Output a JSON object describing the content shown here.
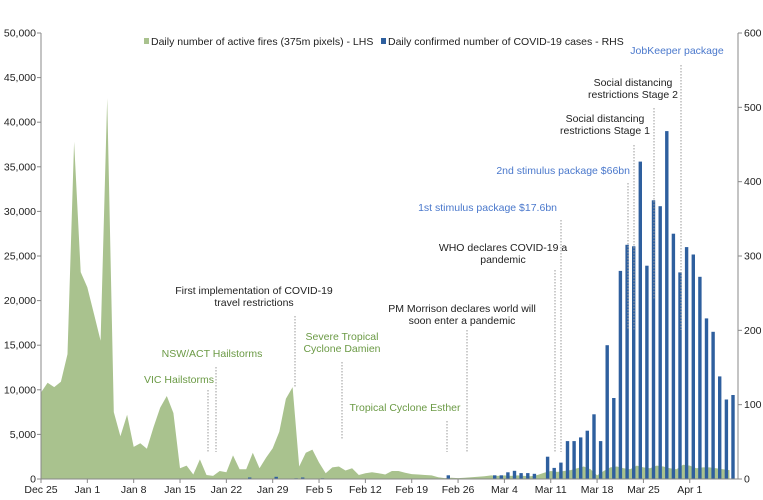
{
  "chart_data": {
    "type": "area+bar",
    "title": "",
    "x_tick_labels": [
      "Dec 25",
      "Jan 1",
      "Jan 8",
      "Jan 15",
      "Jan 22",
      "Jan 29",
      "Feb 5",
      "Feb 12",
      "Feb 19",
      "Feb 26",
      "Mar 4",
      "Mar 11",
      "Mar 18",
      "Mar 25",
      "Apr 1"
    ],
    "x_tick_dates": [
      "2019-12-25",
      "2020-01-01",
      "2020-01-08",
      "2020-01-15",
      "2020-01-22",
      "2020-01-29",
      "2020-02-05",
      "2020-02-12",
      "2020-02-19",
      "2020-02-26",
      "2020-03-04",
      "2020-03-11",
      "2020-03-18",
      "2020-03-25",
      "2020-04-01"
    ],
    "y_left": {
      "range": [
        0,
        50000
      ],
      "ticks": [
        "0",
        "5,000",
        "10,000",
        "15,000",
        "20,000",
        "25,000",
        "30,000",
        "35,000",
        "40,000",
        "45,000",
        "50,000"
      ]
    },
    "y_right": {
      "range": [
        0,
        600
      ],
      "ticks": [
        "0",
        "100",
        "200",
        "300",
        "400",
        "500",
        "600"
      ]
    },
    "grid": false,
    "legend_placement": "top",
    "dates": [
      "2019-12-25",
      "2019-12-26",
      "2019-12-27",
      "2019-12-28",
      "2019-12-29",
      "2019-12-30",
      "2019-12-31",
      "2020-01-01",
      "2020-01-02",
      "2020-01-03",
      "2020-01-04",
      "2020-01-05",
      "2020-01-06",
      "2020-01-07",
      "2020-01-08",
      "2020-01-09",
      "2020-01-10",
      "2020-01-11",
      "2020-01-12",
      "2020-01-13",
      "2020-01-14",
      "2020-01-15",
      "2020-01-16",
      "2020-01-17",
      "2020-01-18",
      "2020-01-19",
      "2020-01-20",
      "2020-01-21",
      "2020-01-22",
      "2020-01-23",
      "2020-01-24",
      "2020-01-25",
      "2020-01-26",
      "2020-01-27",
      "2020-01-28",
      "2020-01-29",
      "2020-01-30",
      "2020-01-31",
      "2020-02-01",
      "2020-02-02",
      "2020-02-03",
      "2020-02-04",
      "2020-02-05",
      "2020-02-06",
      "2020-02-07",
      "2020-02-08",
      "2020-02-09",
      "2020-02-10",
      "2020-02-11",
      "2020-02-12",
      "2020-02-13",
      "2020-02-14",
      "2020-02-15",
      "2020-02-16",
      "2020-02-17",
      "2020-02-18",
      "2020-02-19",
      "2020-02-20",
      "2020-02-21",
      "2020-02-22",
      "2020-02-23",
      "2020-02-24",
      "2020-02-25",
      "2020-02-26",
      "2020-02-27",
      "2020-02-28",
      "2020-02-29",
      "2020-03-01",
      "2020-03-02",
      "2020-03-03",
      "2020-03-04",
      "2020-03-05",
      "2020-03-06",
      "2020-03-07",
      "2020-03-08",
      "2020-03-09",
      "2020-03-10",
      "2020-03-11",
      "2020-03-12",
      "2020-03-13",
      "2020-03-14",
      "2020-03-15",
      "2020-03-16",
      "2020-03-17",
      "2020-03-18",
      "2020-03-19",
      "2020-03-20",
      "2020-03-21",
      "2020-03-22",
      "2020-03-23",
      "2020-03-24",
      "2020-03-25",
      "2020-03-26",
      "2020-03-27",
      "2020-03-28",
      "2020-03-29",
      "2020-03-30",
      "2020-03-31",
      "2020-04-01",
      "2020-04-02",
      "2020-04-03",
      "2020-04-04",
      "2020-04-05",
      "2020-04-06",
      "2020-04-07"
    ],
    "series": [
      {
        "name": "Daily number of active fires (375m pixels) - LHS",
        "type": "area",
        "axis": "left",
        "color": "#a9c28e",
        "values": [
          9700,
          10800,
          10300,
          10900,
          14000,
          37800,
          23200,
          21500,
          18500,
          15500,
          42700,
          7500,
          4800,
          7200,
          3600,
          4000,
          3400,
          5800,
          8000,
          9300,
          7400,
          1200,
          1500,
          500,
          2200,
          450,
          350,
          900,
          750,
          2650,
          1100,
          1100,
          2950,
          1200,
          2400,
          3450,
          5300,
          9000,
          10300,
          1400,
          2950,
          3300,
          1850,
          650,
          1300,
          1400,
          950,
          1200,
          450,
          650,
          750,
          650,
          500,
          900,
          900,
          700,
          550,
          500,
          450,
          400,
          200,
          100,
          150,
          100,
          150,
          200,
          250,
          300,
          400,
          350,
          400,
          350,
          400,
          350,
          300,
          450,
          700,
          900,
          800,
          900,
          1000,
          1200,
          1400,
          1100,
          400,
          900,
          1300,
          1400,
          1200,
          1100,
          1500,
          1300,
          1200,
          1500,
          1400,
          1200,
          1100,
          1600,
          1500,
          1200,
          1300,
          1300,
          1200,
          1100,
          1000
        ]
      },
      {
        "name": "Daily confirmed number of COVID-19 cases - RHS",
        "type": "bar",
        "axis": "right",
        "color": "#2e5f9e",
        "values": [
          0,
          0,
          0,
          0,
          0,
          0,
          0,
          0,
          0,
          0,
          0,
          0,
          0,
          0,
          0,
          0,
          0,
          0,
          0,
          0,
          0,
          0,
          0,
          0,
          0,
          0,
          0,
          0,
          0,
          0,
          0,
          2,
          0,
          0,
          0,
          3,
          0,
          0,
          1,
          2,
          0,
          0,
          1,
          0,
          0,
          0,
          0,
          0,
          0,
          0,
          0,
          0,
          0,
          0,
          0,
          0,
          0,
          0,
          0,
          0,
          0,
          5,
          0,
          0,
          0,
          0,
          0,
          0,
          5,
          5,
          9,
          11,
          8,
          8,
          7,
          0,
          30,
          15,
          22,
          51,
          51,
          56,
          65,
          87,
          51,
          180,
          109,
          280,
          315,
          313,
          427,
          287,
          375,
          367,
          468,
          330,
          278,
          312,
          302,
          272,
          216,
          198,
          138,
          107,
          113
        ]
      }
    ],
    "annotations": [
      {
        "text": "VIC Hailstorms",
        "date": "2020-01-19",
        "color": "#6b9a45"
      },
      {
        "text": "NSW/ACT Hailstorms",
        "date": "2020-01-20",
        "color": "#6b9a45"
      },
      {
        "text": "First implementation of COVID-19\ntravel restrictions",
        "date": "2020-02-01",
        "color": "#222222"
      },
      {
        "text": "Severe Tropical\nCyclone Damien",
        "date": "2020-02-08",
        "color": "#6b9a45"
      },
      {
        "text": "Tropical Cyclone Esther",
        "date": "2020-02-24",
        "color": "#6b9a45"
      },
      {
        "text": "PM Morrison declares world will\nsoon enter a pandemic",
        "date": "2020-02-27",
        "color": "#222222"
      },
      {
        "text": "WHO declares COVID-19 a\npandemic",
        "date": "2020-03-11",
        "color": "#222222"
      },
      {
        "text": "1st stimulus package $17.6bn",
        "date": "2020-03-12",
        "color": "#4a78cc"
      },
      {
        "text": "2nd stimulus package $66bn",
        "date": "2020-03-22",
        "color": "#4a78cc"
      },
      {
        "text": "Social distancing\nrestrictions Stage 1",
        "date": "2020-03-23",
        "color": "#222222"
      },
      {
        "text": "Social distancing\nrestrictions Stage 2",
        "date": "2020-03-26",
        "color": "#222222"
      },
      {
        "text": "JobKeeper package",
        "date": "2020-03-30",
        "color": "#4a78cc"
      }
    ]
  }
}
